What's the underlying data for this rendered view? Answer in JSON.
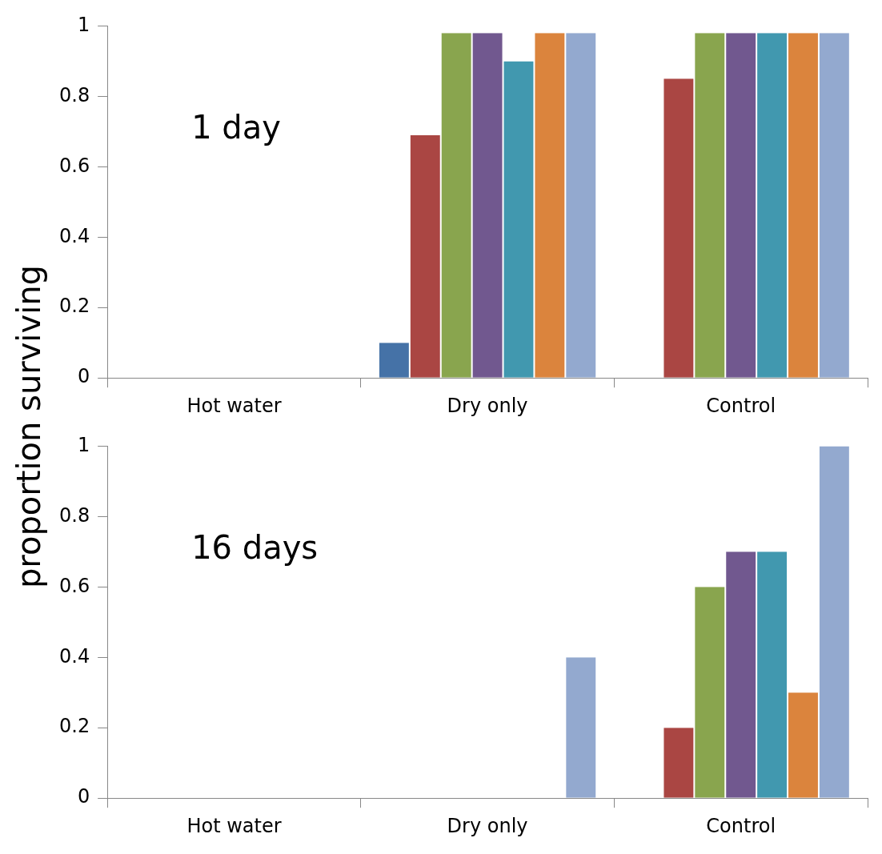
{
  "chart_data": [
    {
      "type": "bar",
      "ylabel": "proportion surviving",
      "annotations": [
        "1 day"
      ],
      "categories": [
        "Hot water",
        "Dry only",
        "Control"
      ],
      "ylim": [
        0,
        1
      ],
      "yticks": [
        0,
        0.2,
        0.4,
        0.6,
        0.8,
        1
      ],
      "grid": false,
      "legend": false,
      "series": [
        {
          "color": "#4572a7",
          "values": [
            0,
            0.1,
            0
          ]
        },
        {
          "color": "#aa4643",
          "values": [
            0,
            0.69,
            0.85
          ]
        },
        {
          "color": "#89a54e",
          "values": [
            0,
            0.98,
            0.98
          ]
        },
        {
          "color": "#71588f",
          "values": [
            0,
            0.98,
            0.98
          ]
        },
        {
          "color": "#4198af",
          "values": [
            0,
            0.9,
            0.98
          ]
        },
        {
          "color": "#db843d",
          "values": [
            0,
            0.98,
            0.98
          ]
        },
        {
          "color": "#93a9cf",
          "values": [
            0,
            0.98,
            0.98
          ]
        }
      ]
    },
    {
      "type": "bar",
      "annotations": [
        "16 days"
      ],
      "categories": [
        "Hot water",
        "Dry only",
        "Control"
      ],
      "ylim": [
        0,
        1
      ],
      "yticks": [
        0,
        0.2,
        0.4,
        0.6,
        0.8,
        1
      ],
      "grid": false,
      "legend": false,
      "series": [
        {
          "color": "#4572a7",
          "values": [
            0,
            0,
            0
          ]
        },
        {
          "color": "#aa4643",
          "values": [
            0,
            0,
            0.2
          ]
        },
        {
          "color": "#89a54e",
          "values": [
            0,
            0,
            0.6
          ]
        },
        {
          "color": "#71588f",
          "values": [
            0,
            0,
            0.7
          ]
        },
        {
          "color": "#4198af",
          "values": [
            0,
            0,
            0.7
          ]
        },
        {
          "color": "#db843d",
          "values": [
            0,
            0,
            0.3
          ]
        },
        {
          "color": "#93a9cf",
          "values": [
            0,
            0.4,
            1
          ]
        }
      ]
    }
  ]
}
